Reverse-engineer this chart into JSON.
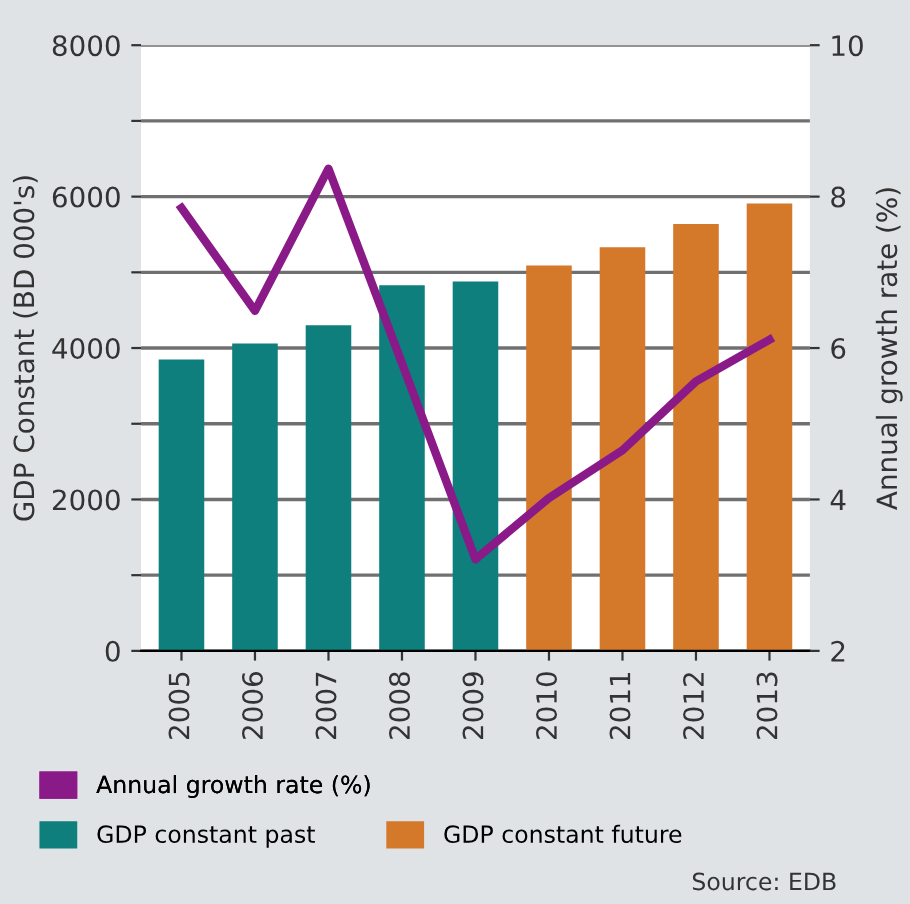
{
  "chart_data": {
    "type": "bar",
    "categories": [
      "2005",
      "2006",
      "2007",
      "2008",
      "2009",
      "2010",
      "2011",
      "2012",
      "2013"
    ],
    "ylabel": "GDP Constant (BD 000's)",
    "y2label": "Annual growth rate (%)",
    "series": [
      {
        "name": "Annual growth rate (%)",
        "type": "line",
        "axis": "y2",
        "color": "#8b1a89",
        "values": [
          7.85,
          6.49,
          8.37,
          5.8,
          3.21,
          4.02,
          4.65,
          5.56,
          6.11
        ]
      },
      {
        "name": "GDP constant past",
        "color": "#0e7f7c",
        "values": [
          3850,
          4060,
          4300,
          4830,
          4880,
          null,
          null,
          null,
          null
        ]
      },
      {
        "name": "GDP constant future",
        "color": "#d4782a",
        "values": [
          null,
          null,
          null,
          null,
          null,
          5090,
          5330,
          5640,
          5910
        ]
      }
    ],
    "ylim": [
      0,
      8000
    ],
    "yticks": [
      0,
      {
        "value": 1000,
        "label": null
      },
      2000,
      {
        "value": 3000,
        "label": null
      },
      4000,
      {
        "value": 5000,
        "label": null
      },
      6000,
      {
        "value": 7000,
        "label": null
      },
      8000
    ],
    "y2lim": [
      2,
      10
    ],
    "y2ticks": [
      2,
      4,
      6,
      8,
      10
    ],
    "grid": "y",
    "legend": "bottom",
    "annotations": [
      "Source: EDB"
    ]
  }
}
